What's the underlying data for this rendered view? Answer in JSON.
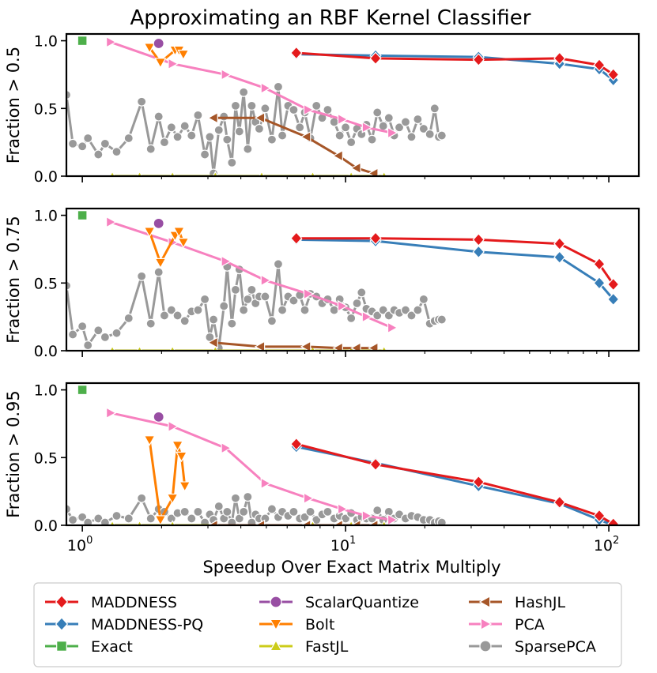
{
  "chart_data": {
    "type": "line",
    "title": "Approximating an RBF Kernel Classifier",
    "xlabel": "Speedup Over Exact Matrix Multiply",
    "xscale": "log",
    "xlim": [
      0.87,
      130
    ],
    "xticks": [
      {
        "value": 1,
        "base": "10",
        "exp": "0"
      },
      {
        "value": 10,
        "base": "10",
        "exp": "1"
      },
      {
        "value": 100,
        "base": "10",
        "exp": "2"
      }
    ],
    "colors": {
      "MADDNESS": "#e41a1c",
      "MADDNESS-PQ": "#377eb8",
      "Exact": "#4daf4a",
      "ScalarQuantize": "#984ea3",
      "Bolt": "#ff7f00",
      "FastJL": "#cccc19",
      "HashJL": "#a65628",
      "PCA": "#f781bf",
      "SparsePCA": "#999999"
    },
    "legend": {
      "placement": "bottom",
      "entries": [
        "MADDNESS",
        "ScalarQuantize",
        "HashJL",
        "MADDNESS-PQ",
        "Bolt",
        "PCA",
        "Exact",
        "FastJL",
        "SparsePCA"
      ]
    },
    "panels": [
      {
        "ylabel": "Fraction > 0.5",
        "ylim": [
          0,
          1.05
        ],
        "yticks": [
          "0.0",
          "0.5",
          "1.0"
        ],
        "series": [
          {
            "name": "MADDNESS-PQ",
            "x": [
              6.5,
              13,
              32,
              65,
              92,
              104
            ],
            "y": [
              0.9,
              0.89,
              0.88,
              0.83,
              0.79,
              0.71
            ]
          },
          {
            "name": "MADDNESS",
            "x": [
              6.5,
              13,
              32,
              65,
              92,
              104
            ],
            "y": [
              0.91,
              0.87,
              0.86,
              0.87,
              0.82,
              0.75
            ]
          },
          {
            "name": "Exact",
            "x": [
              1.0
            ],
            "y": [
              1.0
            ]
          },
          {
            "name": "ScalarQuantize",
            "x": [
              1.95
            ],
            "y": [
              0.98
            ]
          },
          {
            "name": "Bolt",
            "x": [
              1.8,
              1.98,
              2.25,
              2.33,
              2.42
            ],
            "y": [
              0.95,
              0.84,
              0.93,
              0.93,
              0.9
            ]
          },
          {
            "name": "FastJL",
            "x": [
              1.3,
              1.65,
              2.2,
              3.2,
              4.8,
              7.5,
              10.5,
              14
            ],
            "y": [
              0,
              0,
              0,
              0,
              0,
              0,
              0,
              0
            ]
          },
          {
            "name": "HashJL",
            "x": [
              3.15,
              4.75,
              7.1,
              9.4,
              11,
              12.8
            ],
            "y": [
              0.43,
              0.43,
              0.29,
              0.15,
              0.06,
              0.02
            ]
          },
          {
            "name": "PCA",
            "x": [
              1.28,
              2.2,
              3.5,
              4.95,
              7.2,
              9.7,
              12,
              15
            ],
            "y": [
              0.99,
              0.83,
              0.75,
              0.65,
              0.49,
              0.42,
              0.36,
              0.32
            ]
          },
          {
            "name": "SparsePCA",
            "x": [
              0.87,
              0.92,
              1.0,
              1.05,
              1.15,
              1.22,
              1.35,
              1.5,
              1.68,
              1.82,
              1.95,
              2.05,
              2.18,
              2.3,
              2.45,
              2.6,
              2.75,
              2.92,
              3.05,
              3.15,
              3.3,
              3.45,
              3.55,
              3.7,
              3.82,
              3.95,
              4.1,
              4.25,
              4.4,
              4.55,
              4.7,
              4.95,
              5.25,
              5.55,
              5.75,
              6.05,
              6.35,
              6.7,
              7.0,
              7.35,
              7.75,
              8.15,
              8.55,
              9.05,
              9.5,
              10.0,
              10.5,
              11.05,
              11.5,
              12.0,
              12.6,
              13.2,
              13.9,
              14.6,
              15.3,
              16.0,
              16.9,
              17.8,
              18.8,
              19.8,
              20.9,
              21.8,
              22.6,
              23.2
            ],
            "y": [
              0.6,
              0.24,
              0.22,
              0.28,
              0.16,
              0.24,
              0.18,
              0.28,
              0.55,
              0.2,
              0.44,
              0.25,
              0.36,
              0.29,
              0.37,
              0.3,
              0.45,
              0.16,
              0.29,
              0.02,
              0.34,
              0.44,
              0.27,
              0.1,
              0.52,
              0.33,
              0.62,
              0.2,
              0.52,
              0.4,
              0.35,
              0.5,
              0.27,
              0.66,
              0.3,
              0.52,
              0.49,
              0.36,
              0.47,
              0.28,
              0.52,
              0.43,
              0.49,
              0.4,
              0.3,
              0.36,
              0.25,
              0.35,
              0.31,
              0.38,
              0.27,
              0.47,
              0.37,
              0.43,
              0.3,
              0.36,
              0.4,
              0.29,
              0.42,
              0.35,
              0.31,
              0.5,
              0.29,
              0.3
            ]
          }
        ]
      },
      {
        "ylabel": "Fraction > 0.75",
        "ylim": [
          0,
          1.05
        ],
        "yticks": [
          "0.0",
          "0.5",
          "1.0"
        ],
        "series": [
          {
            "name": "MADDNESS-PQ",
            "x": [
              6.5,
              13,
              32,
              65,
              92,
              104
            ],
            "y": [
              0.82,
              0.81,
              0.73,
              0.69,
              0.5,
              0.38
            ]
          },
          {
            "name": "MADDNESS",
            "x": [
              6.5,
              13,
              32,
              65,
              92,
              104
            ],
            "y": [
              0.83,
              0.83,
              0.82,
              0.79,
              0.64,
              0.49
            ]
          },
          {
            "name": "Exact",
            "x": [
              1.0
            ],
            "y": [
              1.0
            ]
          },
          {
            "name": "ScalarQuantize",
            "x": [
              1.95
            ],
            "y": [
              0.94
            ]
          },
          {
            "name": "Bolt",
            "x": [
              1.8,
              1.98,
              2.25,
              2.33,
              2.42
            ],
            "y": [
              0.88,
              0.65,
              0.85,
              0.88,
              0.8
            ]
          },
          {
            "name": "FastJL",
            "x": [
              1.3,
              1.65,
              2.2,
              3.2,
              4.8,
              7.5,
              10.5,
              14
            ],
            "y": [
              0,
              0,
              0,
              0,
              0,
              0,
              0,
              0
            ]
          },
          {
            "name": "HashJL",
            "x": [
              3.15,
              4.75,
              7.1,
              9.4,
              11,
              12.8
            ],
            "y": [
              0.06,
              0.03,
              0.03,
              0.02,
              0.02,
              0.02
            ]
          },
          {
            "name": "PCA",
            "x": [
              1.28,
              2.2,
              3.5,
              4.95,
              7.2,
              9.7,
              12,
              15
            ],
            "y": [
              0.95,
              0.8,
              0.66,
              0.52,
              0.42,
              0.33,
              0.25,
              0.17
            ]
          },
          {
            "name": "SparsePCA",
            "x": [
              0.87,
              0.92,
              1.0,
              1.05,
              1.15,
              1.22,
              1.35,
              1.5,
              1.68,
              1.82,
              1.95,
              2.05,
              2.18,
              2.3,
              2.45,
              2.6,
              2.75,
              2.92,
              3.05,
              3.15,
              3.3,
              3.45,
              3.55,
              3.7,
              3.82,
              3.95,
              4.1,
              4.25,
              4.4,
              4.55,
              4.7,
              4.95,
              5.25,
              5.55,
              5.75,
              6.05,
              6.35,
              6.7,
              7.0,
              7.35,
              7.75,
              8.15,
              8.55,
              9.05,
              9.5,
              10.0,
              10.5,
              11.05,
              11.5,
              12.0,
              12.6,
              13.2,
              13.9,
              14.6,
              15.3,
              16.0,
              16.9,
              17.8,
              18.8,
              19.8,
              20.9,
              21.8,
              22.6,
              23.2
            ],
            "y": [
              0.48,
              0.12,
              0.18,
              0.04,
              0.15,
              0.1,
              0.13,
              0.24,
              0.55,
              0.2,
              0.58,
              0.26,
              0.3,
              0.26,
              0.22,
              0.29,
              0.3,
              0.38,
              0.1,
              0.23,
              0.02,
              0.33,
              0.62,
              0.2,
              0.45,
              0.6,
              0.3,
              0.38,
              0.45,
              0.35,
              0.4,
              0.4,
              0.22,
              0.64,
              0.3,
              0.4,
              0.37,
              0.41,
              0.3,
              0.42,
              0.4,
              0.35,
              0.38,
              0.3,
              0.38,
              0.32,
              0.24,
              0.35,
              0.43,
              0.31,
              0.29,
              0.26,
              0.3,
              0.26,
              0.3,
              0.28,
              0.3,
              0.26,
              0.3,
              0.38,
              0.2,
              0.22,
              0.23,
              0.23
            ]
          }
        ]
      },
      {
        "ylabel": "Fraction > 0.95",
        "ylim": [
          0,
          1.05
        ],
        "yticks": [
          "0.0",
          "0.5",
          "1.0"
        ],
        "series": [
          {
            "name": "MADDNESS-PQ",
            "x": [
              6.5,
              13,
              32,
              65,
              92,
              104
            ],
            "y": [
              0.58,
              0.46,
              0.29,
              0.16,
              0.04,
              0.0
            ]
          },
          {
            "name": "MADDNESS",
            "x": [
              6.5,
              13,
              32,
              65,
              92,
              104
            ],
            "y": [
              0.6,
              0.45,
              0.32,
              0.17,
              0.07,
              0.01
            ]
          },
          {
            "name": "Exact",
            "x": [
              1.0
            ],
            "y": [
              1.0
            ]
          },
          {
            "name": "ScalarQuantize",
            "x": [
              1.95
            ],
            "y": [
              0.8
            ]
          },
          {
            "name": "Bolt",
            "x": [
              1.8,
              1.98,
              2.2,
              2.3,
              2.38,
              2.45
            ],
            "y": [
              0.63,
              0.04,
              0.2,
              0.59,
              0.51,
              0.29
            ]
          },
          {
            "name": "FastJL",
            "x": [
              1.3,
              1.65,
              2.2,
              3.2,
              4.8,
              7.5,
              10.5,
              14
            ],
            "y": [
              0,
              0,
              0,
              0,
              0,
              0,
              0,
              0
            ]
          },
          {
            "name": "HashJL",
            "x": [
              3.15,
              4.75,
              7.1,
              9.4,
              11,
              12.8
            ],
            "y": [
              0.0,
              0.0,
              0.0,
              0.0,
              0.0,
              0.0
            ]
          },
          {
            "name": "PCA",
            "x": [
              1.28,
              2.2,
              3.5,
              4.95,
              7.2,
              9.7,
              12,
              15
            ],
            "y": [
              0.83,
              0.73,
              0.57,
              0.31,
              0.2,
              0.12,
              0.07,
              0.04
            ]
          },
          {
            "name": "SparsePCA",
            "x": [
              0.87,
              0.92,
              1.0,
              1.05,
              1.15,
              1.22,
              1.35,
              1.5,
              1.68,
              1.82,
              1.95,
              2.05,
              2.18,
              2.3,
              2.45,
              2.6,
              2.75,
              2.92,
              3.05,
              3.15,
              3.3,
              3.45,
              3.55,
              3.7,
              3.82,
              3.95,
              4.1,
              4.25,
              4.4,
              4.55,
              4.7,
              4.95,
              5.25,
              5.55,
              5.75,
              6.05,
              6.35,
              6.7,
              7.0,
              7.35,
              7.75,
              8.15,
              8.55,
              9.05,
              9.5,
              10.0,
              10.5,
              11.05,
              11.5,
              12.0,
              12.6,
              13.2,
              13.9,
              14.6,
              15.3,
              16.0,
              16.9,
              17.8,
              18.8,
              19.8,
              20.9,
              21.8,
              22.6,
              23.2
            ],
            "y": [
              0.12,
              0.04,
              0.06,
              0.02,
              0.05,
              0.02,
              0.07,
              0.05,
              0.2,
              0.05,
              0.12,
              0.1,
              0.05,
              0.09,
              0.1,
              0.05,
              0.1,
              0.02,
              0.08,
              0.04,
              0.14,
              0.05,
              0.1,
              0.02,
              0.2,
              0.05,
              0.1,
              0.21,
              0.02,
              0.08,
              0.05,
              0.05,
              0.12,
              0.06,
              0.1,
              0.07,
              0.1,
              0.05,
              0.06,
              0.1,
              0.04,
              0.08,
              0.1,
              0.05,
              0.07,
              0.05,
              0.09,
              0.04,
              0.06,
              0.05,
              0.05,
              0.11,
              0.04,
              0.1,
              0.05,
              0.08,
              0.05,
              0.07,
              0.06,
              0.04,
              0.04,
              0.02,
              0.03,
              0.02
            ]
          }
        ]
      }
    ]
  }
}
